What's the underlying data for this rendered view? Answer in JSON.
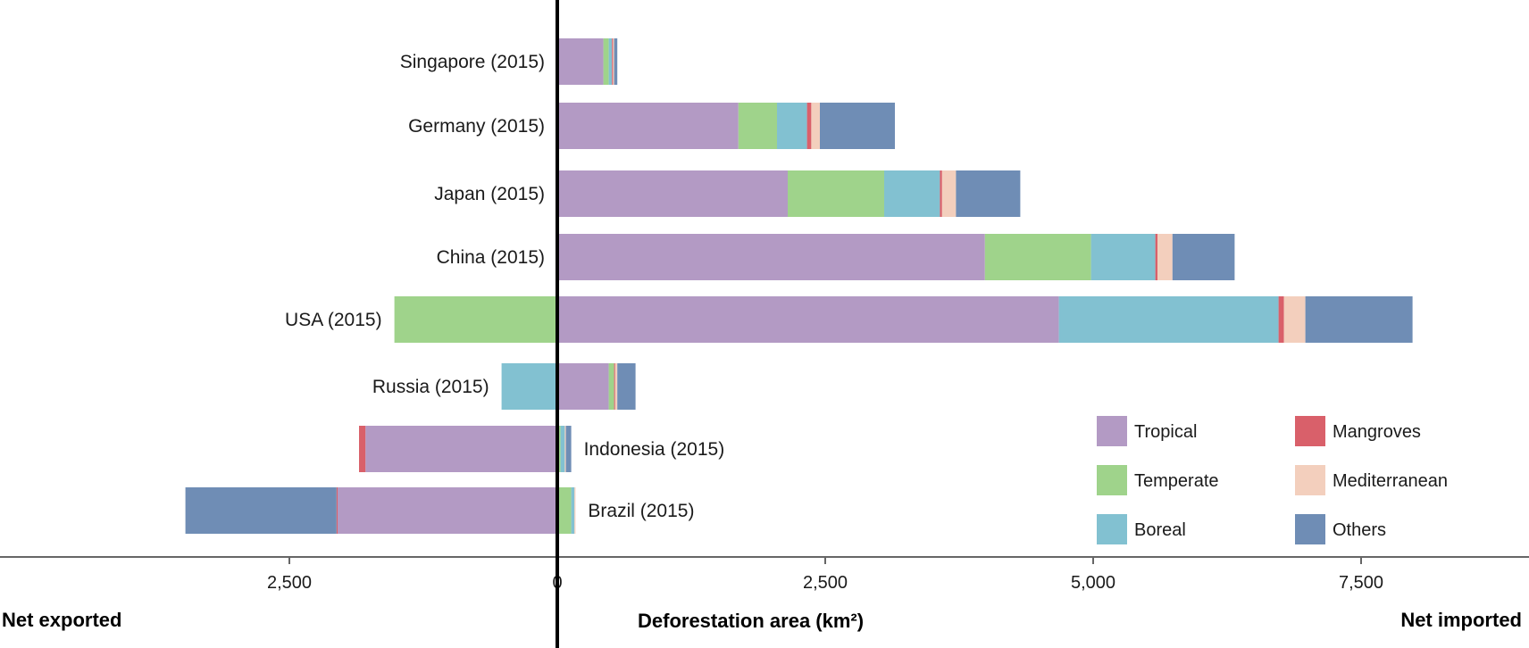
{
  "chart_data": {
    "type": "bar",
    "orientation": "horizontal",
    "stacked": true,
    "categories": [
      "Singapore (2015)",
      "Germany (2015)",
      "Japan (2015)",
      "China (2015)",
      "USA (2015)",
      "Russia (2015)",
      "Indonesia (2015)",
      "Brazil (2015)"
    ],
    "series": [
      {
        "name": "Tropical",
        "color": "#b39ac4",
        "values": [
          430,
          1690,
          2150,
          3990,
          4680,
          480,
          -1790,
          -2050
        ]
      },
      {
        "name": "Temperate",
        "color": "#9fd38b",
        "values": [
          50,
          360,
          900,
          990,
          -1520,
          50,
          30,
          130
        ]
      },
      {
        "name": "Boreal",
        "color": "#82c1d1",
        "values": [
          30,
          280,
          520,
          600,
          2050,
          -520,
          40,
          30
        ]
      },
      {
        "name": "Mangroves",
        "color": "#d9606a",
        "values": [
          10,
          40,
          20,
          20,
          50,
          10,
          -60,
          -10
        ]
      },
      {
        "name": "Mediterranean",
        "color": "#f3cfbd",
        "values": [
          10,
          80,
          130,
          140,
          200,
          20,
          10,
          10
        ]
      },
      {
        "name": "Others",
        "color": "#6f8db5",
        "values": [
          30,
          700,
          600,
          580,
          1000,
          170,
          50,
          -1410
        ]
      }
    ],
    "xlabel": "Deforestation area (km²)",
    "left_note": "Net exported",
    "right_note": "Net imported",
    "xlim": [
      -4850,
      8450
    ],
    "xticks": [
      {
        "value": -2500,
        "label": "2,500"
      },
      {
        "value": 0,
        "label": "0"
      },
      {
        "value": 2500,
        "label": "2,500"
      },
      {
        "value": 5000,
        "label": "5,000"
      },
      {
        "value": 7500,
        "label": "7,500"
      }
    ],
    "legend_position": "bottom-right",
    "grid": false
  }
}
